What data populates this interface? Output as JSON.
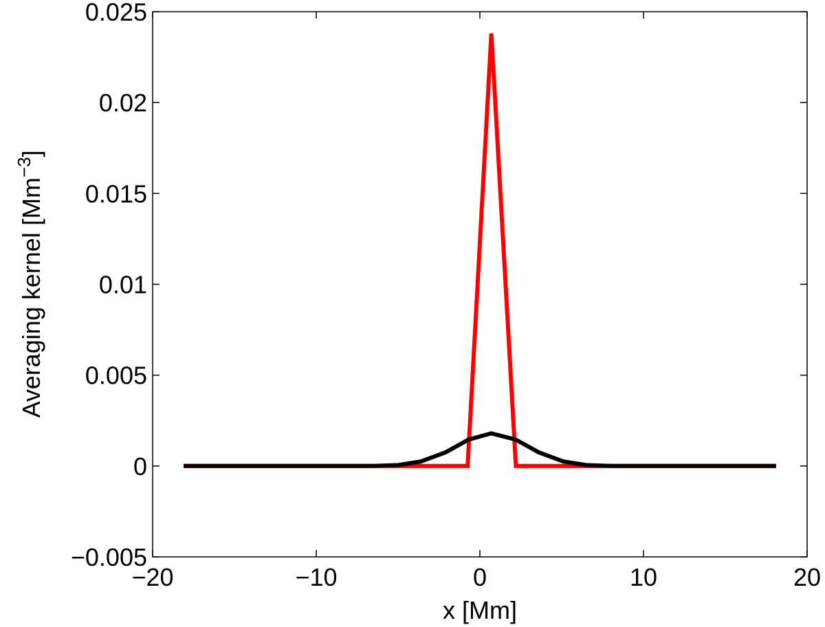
{
  "chart_data": {
    "type": "line",
    "title": "",
    "xlabel": "x [Mm]",
    "ylabel": "Averaging kernel [Mm",
    "ylabel_superscript": "−3",
    "ylabel_suffix": "]",
    "xlim": [
      -20,
      20
    ],
    "ylim": [
      -0.005,
      0.025
    ],
    "x_ticks": [
      -20,
      -10,
      0,
      10,
      20
    ],
    "x_tick_labels": [
      "−20",
      "−10",
      "0",
      "10",
      "20"
    ],
    "y_ticks": [
      -0.005,
      0,
      0.005,
      0.01,
      0.015,
      0.02,
      0.025
    ],
    "y_tick_labels": [
      "−0.005",
      "0",
      "0.005",
      "0.01",
      "0.015",
      "0.02",
      "0.025"
    ],
    "grid": false,
    "legend": "none",
    "series": [
      {
        "color": "#ff0000",
        "x": [
          -18.1,
          -0.75,
          0.7,
          2.2,
          18.1
        ],
        "y": [
          0,
          0,
          0.0238,
          0,
          0
        ]
      },
      {
        "color": "#000000",
        "x": [
          -18.1,
          -6.5,
          -5.0,
          -3.6,
          -2.1,
          -0.7,
          0.7,
          2.2,
          3.6,
          5.1,
          6.5,
          8.0,
          18.1
        ],
        "y": [
          0,
          0,
          5e-05,
          0.00025,
          0.00075,
          0.00145,
          0.0018,
          0.00145,
          0.00075,
          0.00025,
          5e-05,
          0,
          0
        ]
      }
    ]
  }
}
